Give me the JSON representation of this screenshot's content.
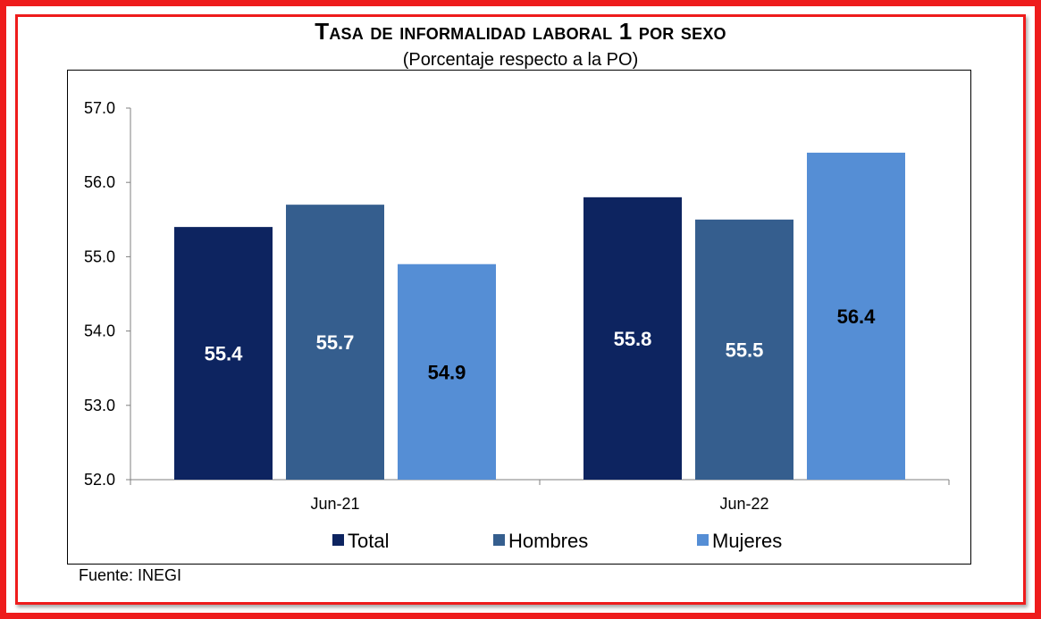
{
  "title": "Tasa de informalidad laboral 1 por sexo",
  "subtitle": "(Porcentaje respecto a la PO)",
  "source": "Fuente: INEGI",
  "colors": {
    "frame": "#ee1c1c",
    "Total": "#0d2460",
    "Hombres": "#355e8e",
    "Mujeres": "#558ed5"
  },
  "chart_data": {
    "type": "bar",
    "title": "Tasa de informalidad laboral 1 por sexo",
    "subtitle": "(Porcentaje respecto a la PO)",
    "categories": [
      "Jun-21",
      "Jun-22"
    ],
    "series": [
      {
        "name": "Total",
        "values": [
          55.4,
          55.8
        ],
        "labels": [
          "55.4",
          "55.8"
        ],
        "color": "#0d2460",
        "label_color": "#ffffff"
      },
      {
        "name": "Hombres",
        "values": [
          55.7,
          55.5
        ],
        "labels": [
          "55.7",
          "55.5"
        ],
        "color": "#355e8e",
        "label_color": "#ffffff"
      },
      {
        "name": "Mujeres",
        "values": [
          54.9,
          56.4
        ],
        "labels": [
          "54.9",
          "56.4"
        ],
        "color": "#558ed5",
        "label_color": "#000000"
      }
    ],
    "ylim": [
      52.0,
      57.0
    ],
    "yticks": [
      "52.0",
      "53.0",
      "54.0",
      "55.0",
      "56.0",
      "57.0"
    ],
    "xlabel": "",
    "ylabel": "",
    "grid": false,
    "legend": "bottom"
  }
}
